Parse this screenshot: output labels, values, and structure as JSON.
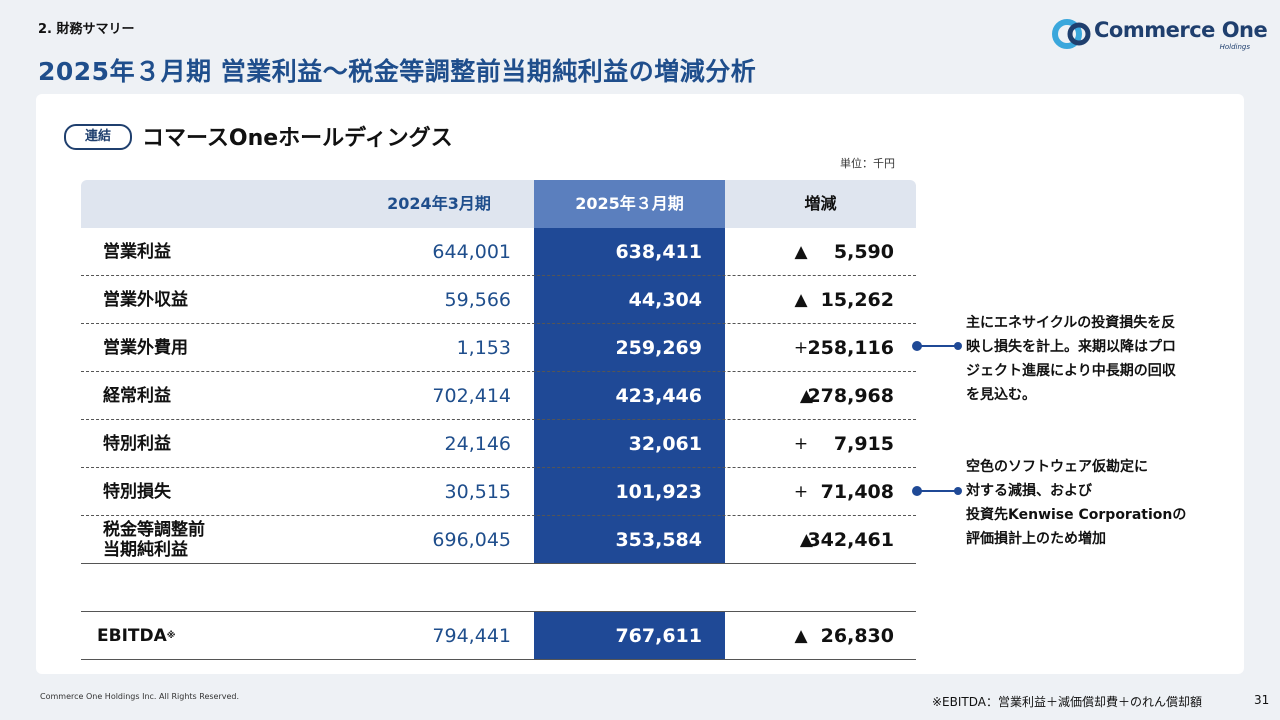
{
  "section": "2. 財務サマリー",
  "title": "2025年３月期 営業利益～税金等調整前当期純利益の増減分析",
  "logo": {
    "main": "Commerce One",
    "sub": "Holdings"
  },
  "tag": "連結",
  "subtitle": "コマースOneホールディングス",
  "unit": "単位：千円",
  "headers": [
    "2024年3月期",
    "2025年３月期",
    "増減"
  ],
  "rows": [
    {
      "label": "営業利益",
      "prev": "644,001",
      "curr": "638,411",
      "sym": "▲",
      "diff": "5,590"
    },
    {
      "label": "営業外収益",
      "prev": "59,566",
      "curr": "44,304",
      "sym": "▲",
      "diff": "15,262"
    },
    {
      "label": "営業外費用",
      "prev": "1,153",
      "curr": "259,269",
      "sym": "+",
      "diff": "258,116"
    },
    {
      "label": "経常利益",
      "prev": "702,414",
      "curr": "423,446",
      "sym": "▲",
      "diff": "278,968"
    },
    {
      "label": "特別利益",
      "prev": "24,146",
      "curr": "32,061",
      "sym": "+",
      "diff": "7,915"
    },
    {
      "label": "特別損失",
      "prev": "30,515",
      "curr": "101,923",
      "sym": "+",
      "diff": "71,408"
    },
    {
      "label": "税金等調整前\n当期純利益",
      "prev": "696,045",
      "curr": "353,584",
      "sym": "▲",
      "diff": "342,461"
    }
  ],
  "ebitda": {
    "label": "EBITDA",
    "mark": "※",
    "prev": "794,441",
    "curr": "767,611",
    "sym": "▲",
    "diff": "26,830"
  },
  "notes": [
    [
      "主にエネサイクルの投資損失を反",
      "映し損失を計上。来期以降はプロ",
      "ジェクト進展により中長期の回収",
      "を見込む。"
    ],
    [
      "空色のソフトウェア仮勘定に",
      "対する減損、および",
      "投資先Kenwise Corporationの",
      "評価損計上のため増加"
    ]
  ],
  "footer_left": "Commerce One Holdings Inc. All Rights Reserved.",
  "footer_right": "※EBITDA：営業利益＋減価償却費＋のれん償却額",
  "page": "31"
}
